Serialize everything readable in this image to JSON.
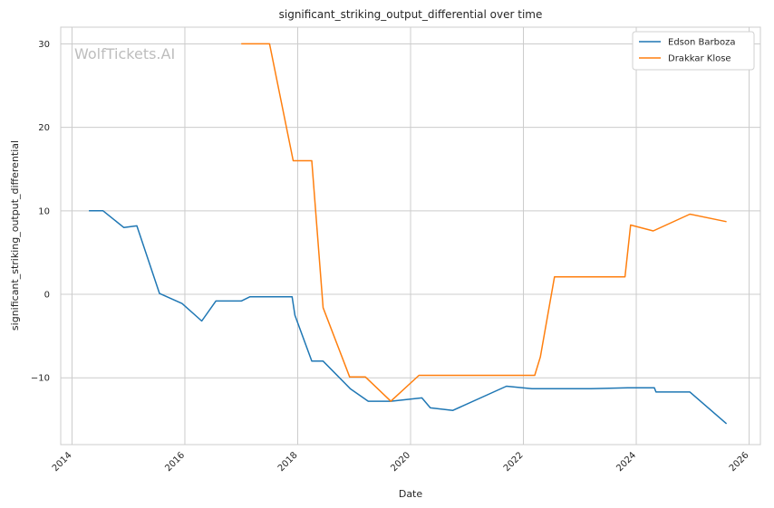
{
  "chart_data": {
    "type": "line",
    "title": "significant_striking_output_differential over time",
    "xlabel": "Date",
    "ylabel": "significant_striking_output_differential",
    "watermark": "WolfTickets.AI",
    "xlim": [
      2013.8,
      2026.2
    ],
    "ylim": [
      -18,
      32
    ],
    "xticks": [
      2014,
      2016,
      2018,
      2020,
      2022,
      2024,
      2026
    ],
    "yticks": [
      -10,
      0,
      10,
      20,
      30
    ],
    "ytick_labels": [
      "−10",
      "0",
      "10",
      "20",
      "30"
    ],
    "grid": true,
    "legend_position": "top-right",
    "series": [
      {
        "name": "Edson Barboza",
        "color": "#1f77b4",
        "x": [
          2014.3,
          2014.55,
          2014.92,
          2015.15,
          2015.55,
          2015.95,
          2016.3,
          2016.55,
          2017.0,
          2017.15,
          2017.9,
          2017.95,
          2018.25,
          2018.45,
          2018.93,
          2019.25,
          2019.65,
          2020.2,
          2020.35,
          2020.75,
          2021.7,
          2022.15,
          2023.2,
          2023.85,
          2024.32,
          2024.35,
          2024.95,
          2025.6
        ],
        "y": [
          10.0,
          10.0,
          8.0,
          8.2,
          0.1,
          -1.1,
          -3.2,
          -0.8,
          -0.8,
          -0.3,
          -0.3,
          -2.5,
          -8.0,
          -8.0,
          -11.3,
          -12.8,
          -12.8,
          -12.4,
          -13.6,
          -13.9,
          -11.0,
          -11.3,
          -11.3,
          -11.2,
          -11.2,
          -11.7,
          -11.7,
          -15.5
        ]
      },
      {
        "name": "Drakkar Klose",
        "color": "#ff7f0e",
        "x": [
          2017.0,
          2017.5,
          2017.92,
          2018.25,
          2018.45,
          2018.92,
          2019.2,
          2019.65,
          2020.15,
          2022.2,
          2022.3,
          2022.55,
          2023.8,
          2023.9,
          2024.3,
          2024.95,
          2025.6
        ],
        "y": [
          30.0,
          30.0,
          16.0,
          16.0,
          -1.6,
          -9.9,
          -9.9,
          -12.8,
          -9.7,
          -9.7,
          -7.5,
          2.1,
          2.1,
          8.3,
          7.6,
          9.6,
          8.7
        ]
      }
    ]
  }
}
